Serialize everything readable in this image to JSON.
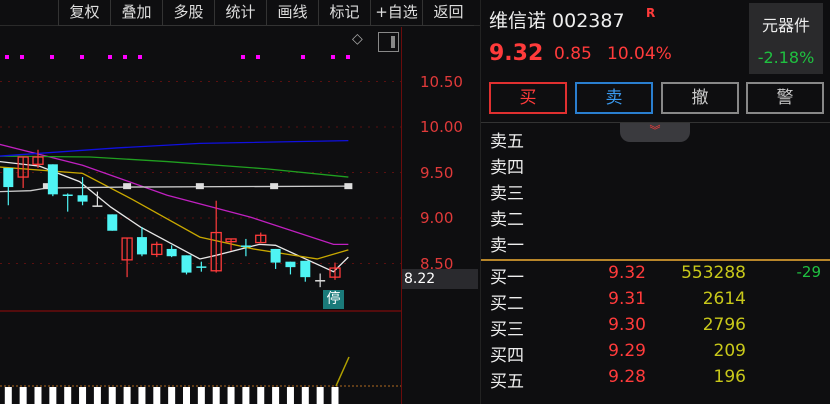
{
  "toolbar": {
    "items": [
      "复权",
      "叠加",
      "多股",
      "统计",
      "画线",
      "标记",
      "+自选",
      "返回"
    ]
  },
  "axis": {
    "labels": [
      "10.50",
      "10.00",
      "9.50",
      "9.00",
      "8.50"
    ],
    "current_price": "8.22"
  },
  "chart": {
    "stop_badge": "停",
    "colors": {
      "up": "#ff3b3b",
      "down": "#4ff4f4",
      "ma5": "#e8e8e8",
      "ma10": "#c8a800",
      "ma20": "#c020c0",
      "ma60": "#20a020",
      "ma120": "#1010e0",
      "flat": "#cccccc"
    }
  },
  "candles": [
    {
      "o": 9.55,
      "c": 9.34,
      "h": 9.55,
      "l": 9.14
    },
    {
      "o": 9.45,
      "c": 9.67,
      "h": 9.67,
      "l": 9.33
    },
    {
      "o": 9.59,
      "c": 9.67,
      "h": 9.75,
      "l": 9.55
    },
    {
      "o": 9.59,
      "c": 9.26,
      "h": 9.59,
      "l": 9.24
    },
    {
      "o": 9.25,
      "c": 9.24,
      "h": 9.27,
      "l": 9.07
    },
    {
      "o": 9.25,
      "c": 9.18,
      "h": 9.45,
      "l": 9.14
    },
    {
      "o": 9.13,
      "c": 9.13,
      "h": 9.29,
      "l": 9.13,
      "flat": true
    },
    {
      "o": 9.04,
      "c": 8.86,
      "h": 9.04,
      "l": 8.86
    },
    {
      "o": 8.54,
      "c": 8.78,
      "h": 8.78,
      "l": 8.35
    },
    {
      "o": 8.79,
      "c": 8.6,
      "h": 8.9,
      "l": 8.58
    },
    {
      "o": 8.6,
      "c": 8.71,
      "h": 8.74,
      "l": 8.57
    },
    {
      "o": 8.66,
      "c": 8.58,
      "h": 8.7,
      "l": 8.57
    },
    {
      "o": 8.59,
      "c": 8.4,
      "h": 8.59,
      "l": 8.38
    },
    {
      "o": 8.46,
      "c": 8.46,
      "h": 8.52,
      "l": 8.41
    },
    {
      "o": 8.42,
      "c": 8.84,
      "h": 9.19,
      "l": 8.4
    },
    {
      "o": 8.74,
      "c": 8.77,
      "h": 8.77,
      "l": 8.64
    },
    {
      "o": 8.69,
      "c": 8.69,
      "h": 8.77,
      "l": 8.58
    },
    {
      "o": 8.73,
      "c": 8.81,
      "h": 8.84,
      "l": 8.73
    },
    {
      "o": 8.66,
      "c": 8.51,
      "h": 8.66,
      "l": 8.44
    },
    {
      "o": 8.52,
      "c": 8.46,
      "h": 8.52,
      "l": 8.38
    },
    {
      "o": 8.53,
      "c": 8.35,
      "h": 8.53,
      "l": 8.3
    },
    {
      "o": 8.31,
      "c": 8.31,
      "h": 8.39,
      "l": 8.24,
      "flat": true
    },
    {
      "o": 8.35,
      "c": 8.45,
      "h": 8.51,
      "l": 8.32
    }
  ],
  "ma_lines": {
    "ma5": [
      [
        0.4,
        9.62
      ],
      [
        3.1,
        9.57
      ],
      [
        5.8,
        9.4
      ],
      [
        7.9,
        9.12
      ],
      [
        9.9,
        8.9
      ],
      [
        13.9,
        8.55
      ],
      [
        15.0,
        8.59
      ],
      [
        17.9,
        8.71
      ],
      [
        19.0,
        8.7
      ],
      [
        22.9,
        8.41
      ],
      [
        23.9,
        8.57
      ]
    ],
    "ma10": [
      [
        0.4,
        9.56
      ],
      [
        6.0,
        9.49
      ],
      [
        9.4,
        9.2
      ],
      [
        13.9,
        8.79
      ],
      [
        17.5,
        8.66
      ],
      [
        21.8,
        8.55
      ],
      [
        23.9,
        8.65
      ]
    ],
    "ma20": [
      [
        0.4,
        9.81
      ],
      [
        6.0,
        9.58
      ],
      [
        11.7,
        9.25
      ],
      [
        17.3,
        9.01
      ],
      [
        22.9,
        8.71
      ],
      [
        23.9,
        8.71
      ]
    ],
    "ma60": [
      [
        0.4,
        9.68
      ],
      [
        6.5,
        9.67
      ],
      [
        11.7,
        9.62
      ],
      [
        18.4,
        9.54
      ],
      [
        23.9,
        9.45
      ]
    ],
    "ma120": [
      [
        0.4,
        9.68
      ],
      [
        8.3,
        9.77
      ],
      [
        13.9,
        9.82
      ],
      [
        23.9,
        9.85
      ]
    ],
    "flat": [
      [
        0.4,
        9.29
      ],
      [
        2.5,
        9.3
      ],
      [
        3.6,
        9.33
      ],
      [
        9.0,
        9.34
      ],
      [
        23.9,
        9.35
      ]
    ]
  },
  "stock": {
    "name": "维信诺 002387",
    "badge": "R",
    "price": "9.32",
    "change": "0.85",
    "pct": "10.04%"
  },
  "sector": {
    "name": "元器件",
    "pct": "-2.18%"
  },
  "actions": {
    "buy": "买",
    "sell": "卖",
    "cancel": "撤",
    "alert": "警"
  },
  "asks": [
    {
      "label": "卖五"
    },
    {
      "label": "卖四"
    },
    {
      "label": "卖三"
    },
    {
      "label": "卖二"
    },
    {
      "label": "卖一"
    }
  ],
  "bids": [
    {
      "label": "买一",
      "price": "9.32",
      "vol": "553288",
      "diff": "-29"
    },
    {
      "label": "买二",
      "price": "9.31",
      "vol": "2614"
    },
    {
      "label": "买三",
      "price": "9.30",
      "vol": "2796"
    },
    {
      "label": "买四",
      "price": "9.29",
      "vol": "209"
    },
    {
      "label": "买五",
      "price": "9.28",
      "vol": "196"
    }
  ]
}
